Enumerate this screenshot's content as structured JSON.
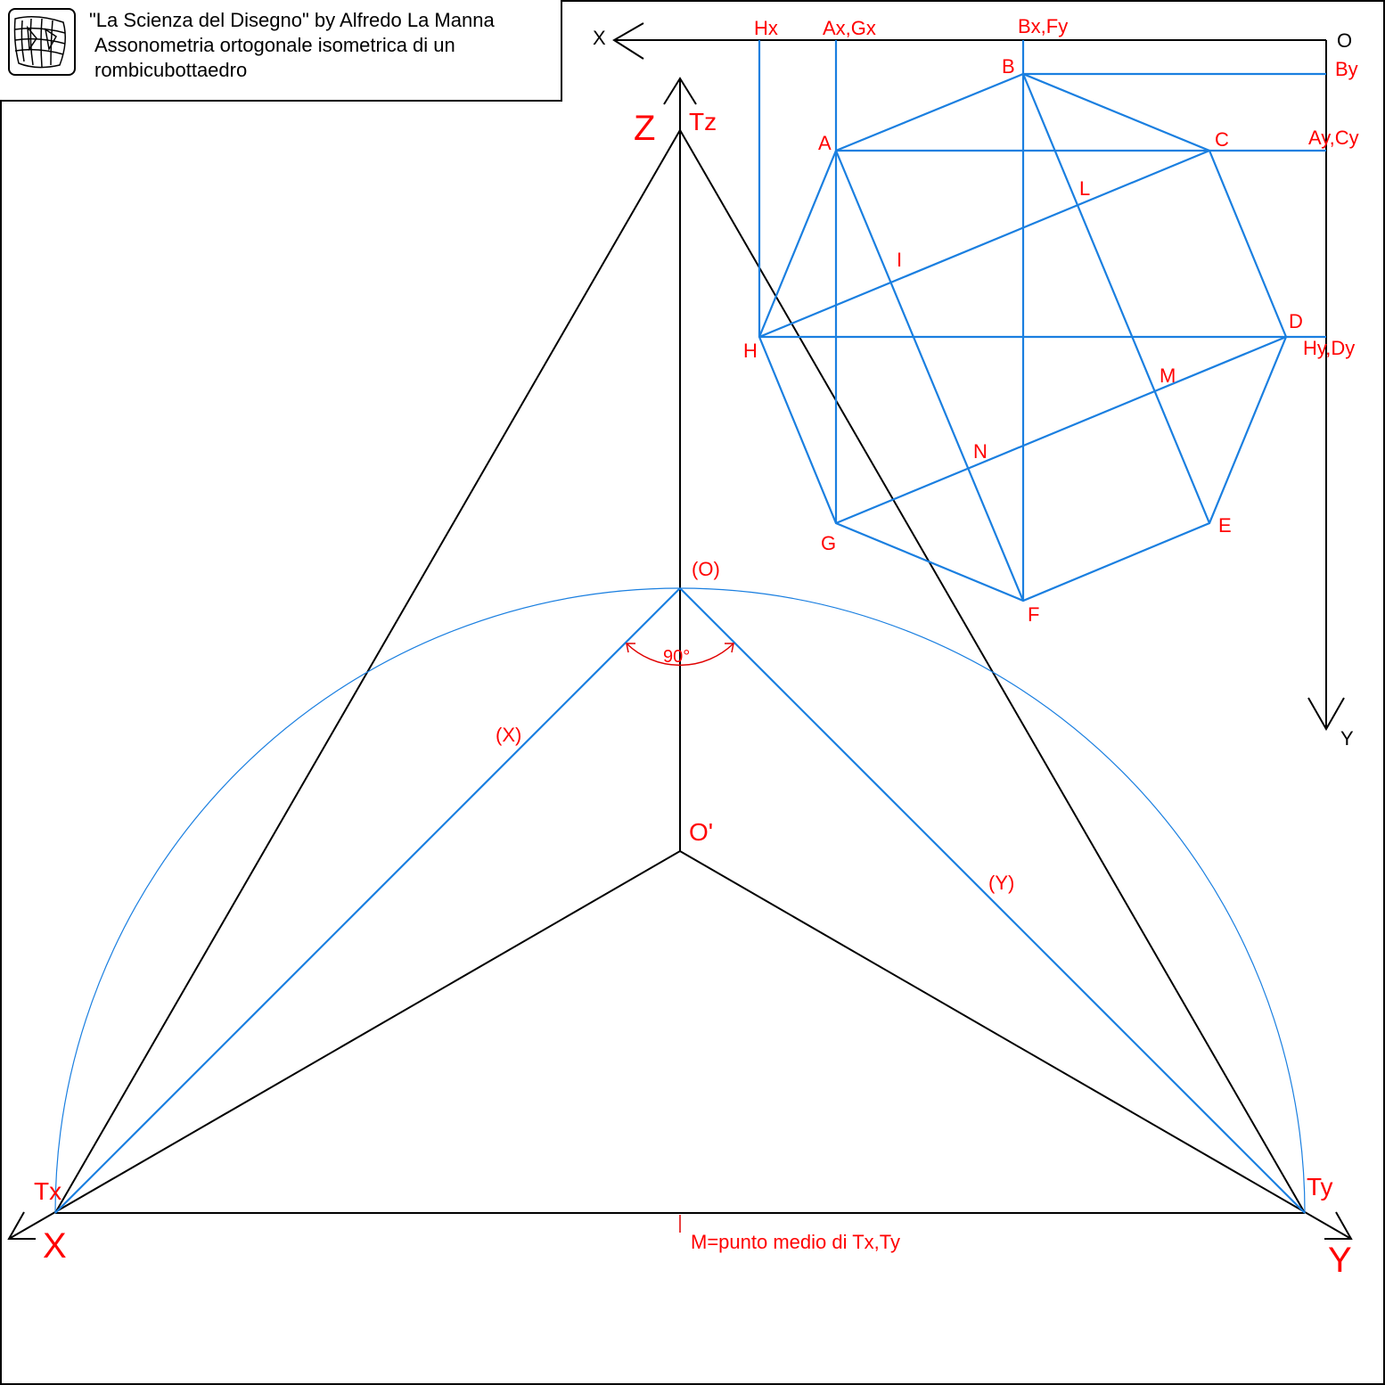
{
  "title": {
    "line1": "\"La Scienza del Disegno\" by Alfredo La Manna",
    "line2": "Assonometria ortogonale isometrica di un",
    "line3": "rombicubottaedro"
  },
  "colors": {
    "construction": "#000000",
    "polygon": "#1a7fe0",
    "arc": "#1a7fe0",
    "labels": "#ff0000"
  },
  "labels": {
    "axis_Z": "Z",
    "axis_X": "X",
    "axis_Y": "Y",
    "Tz": "Tz",
    "Tx": "Tx",
    "Ty": "Ty",
    "O_prime": "O'",
    "O_rot": "(O)",
    "X_rot": "(X)",
    "Y_rot": "(Y)",
    "angle": "90°",
    "midpoint": "M=punto medio di Tx,Ty",
    "plan_X": "X",
    "plan_Y": "Y",
    "plan_O": "O",
    "Hx": "Hx",
    "AxGx": "Ax,Gx",
    "BxFy": "Bx,Fy",
    "By": "By",
    "AyCy": "Ay,Cy",
    "HyDy": "Hy,Dy",
    "A": "A",
    "B": "B",
    "C": "C",
    "D": "D",
    "E": "E",
    "F": "F",
    "G": "G",
    "H": "H",
    "I": "I",
    "L": "L",
    "M": "M",
    "N": "N"
  }
}
